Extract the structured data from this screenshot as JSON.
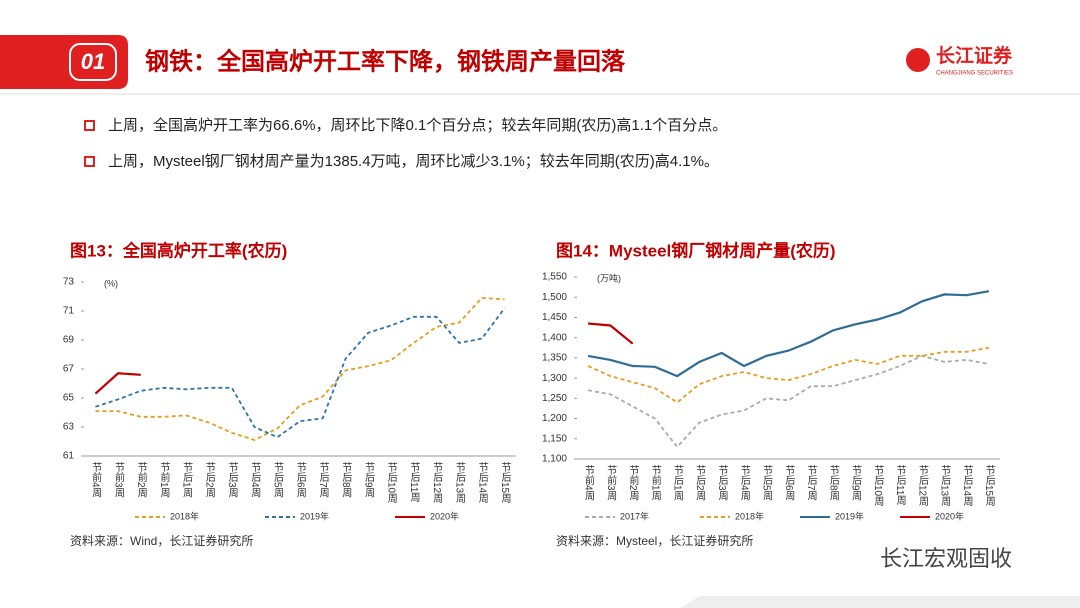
{
  "header": {
    "number": "01",
    "title": "钢铁：全国高炉开工率下降，钢铁周产量回落",
    "logo": "长江证券",
    "logo_en": "CHANGJIANG SECURITIES"
  },
  "bullets": [
    "上周，全国高炉开工率为66.6%，周环比下降0.1个百分点；较去年同期(农历)高1.1个百分点。",
    "上周，Mysteel钢厂钢材周产量为1385.4万吨，周环比减少3.1%；较去年同期(农历)高4.1%。"
  ],
  "sources": [
    "资料来源：Wind，长江证券研究所",
    "资料来源：Mysteel，长江证券研究所"
  ],
  "watermark": "长江宏观固收",
  "chart_data": [
    {
      "type": "line",
      "title": "图13：全国高炉开工率(农历)",
      "unit": "(%)",
      "categories": [
        "节前4周",
        "节前3周",
        "节前2周",
        "节前1周",
        "节后1周",
        "节后2周",
        "节后3周",
        "节后4周",
        "节后5周",
        "节后6周",
        "节后7周",
        "节后8周",
        "节后9周",
        "节后10周",
        "节后11周",
        "节后12周",
        "节后13周",
        "节后14周",
        "节后15周"
      ],
      "ylim": [
        61,
        73
      ],
      "yticks": [
        61,
        63,
        65,
        67,
        69,
        71,
        73
      ],
      "series": [
        {
          "name": "2018年",
          "color": "#e0a020",
          "dashed": true,
          "values": [
            64.1,
            64.1,
            63.7,
            63.7,
            63.8,
            63.3,
            62.6,
            62.1,
            62.9,
            64.5,
            65.1,
            66.9,
            67.2,
            67.6,
            68.8,
            69.9,
            70.2,
            71.9,
            71.8
          ]
        },
        {
          "name": "2019年",
          "color": "#2e75a6",
          "dashed": true,
          "values": [
            64.4,
            64.9,
            65.5,
            65.7,
            65.6,
            65.7,
            65.7,
            63.0,
            62.3,
            63.4,
            63.6,
            67.7,
            69.5,
            70.0,
            70.6,
            70.6,
            68.8,
            69.1,
            71.2
          ]
        },
        {
          "name": "2020年",
          "color": "#c00000",
          "dashed": false,
          "values": [
            65.3,
            66.7,
            66.6,
            null,
            null,
            null,
            null,
            null,
            null,
            null,
            null,
            null,
            null,
            null,
            null,
            null,
            null,
            null,
            null
          ]
        }
      ]
    },
    {
      "type": "line",
      "title": "图14：Mysteel钢厂钢材周产量(农历)",
      "unit": "(万吨)",
      "categories": [
        "节前4周",
        "节前3周",
        "节前2周",
        "节前1周",
        "节后1周",
        "节后2周",
        "节后3周",
        "节后4周",
        "节后5周",
        "节后6周",
        "节后7周",
        "节后8周",
        "节后9周",
        "节后10周",
        "节后11周",
        "节后12周",
        "节后13周",
        "节后14周",
        "节后15周"
      ],
      "ylim": [
        1100,
        1550
      ],
      "yticks": [
        {
          "value": 1100,
          "label": "1,100"
        },
        {
          "value": 1150,
          "label": "1,150"
        },
        {
          "value": 1200,
          "label": "1,200"
        },
        {
          "value": 1250,
          "label": "1,250"
        },
        {
          "value": 1300,
          "label": "1,300"
        },
        {
          "value": 1350,
          "label": "1,350"
        },
        {
          "value": 1400,
          "label": "1,400"
        },
        {
          "value": 1450,
          "label": "1,450"
        },
        {
          "value": 1500,
          "label": "1,500"
        },
        {
          "value": 1550,
          "label": "1,550"
        }
      ],
      "series": [
        {
          "name": "2017年",
          "color": "#aaaaaa",
          "dashed": true,
          "values": [
            1270,
            1260,
            1230,
            1200,
            1130,
            1190,
            1210,
            1220,
            1250,
            1245,
            1280,
            1280,
            1295,
            1310,
            1330,
            1355,
            1340,
            1345,
            1335
          ]
        },
        {
          "name": "2018年",
          "color": "#e0a020",
          "dashed": true,
          "values": [
            1330,
            1305,
            1290,
            1275,
            1240,
            1285,
            1305,
            1315,
            1300,
            1295,
            1310,
            1330,
            1345,
            1335,
            1355,
            1355,
            1365,
            1365,
            1375
          ]
        },
        {
          "name": "2019年",
          "color": "#2e6e96",
          "dashed": false,
          "values": [
            1355,
            1345,
            1330,
            1328,
            1305,
            1340,
            1362,
            1330,
            1355,
            1368,
            1390,
            1418,
            1433,
            1445,
            1462,
            1490,
            1507,
            1505,
            1515
          ]
        },
        {
          "name": "2020年",
          "color": "#c00000",
          "dashed": false,
          "values": [
            1435,
            1430,
            1385,
            null,
            null,
            null,
            null,
            null,
            null,
            null,
            null,
            null,
            null,
            null,
            null,
            null,
            null,
            null,
            null
          ]
        }
      ]
    }
  ]
}
